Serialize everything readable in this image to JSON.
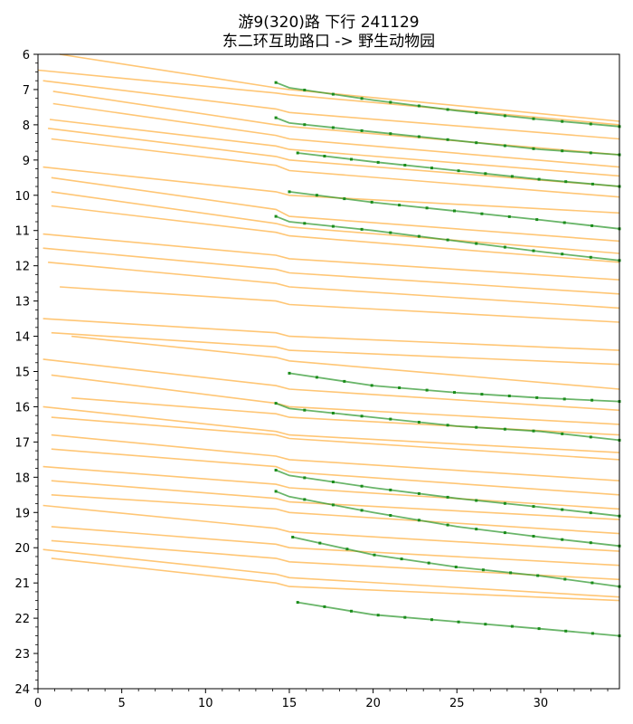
{
  "chart_data": {
    "type": "line",
    "title": "游9(320)路 下行 241129",
    "subtitle": "东二环互助路口 -> 野生动物园",
    "xlabel": "",
    "ylabel": "",
    "xlim": [
      0,
      34.7
    ],
    "ylim": [
      24,
      6
    ],
    "x_ticks": [
      0,
      5,
      10,
      15,
      20,
      25,
      30
    ],
    "y_ticks": [
      6,
      7,
      8,
      9,
      10,
      11,
      12,
      13,
      14,
      15,
      16,
      17,
      18,
      19,
      20,
      21,
      22,
      23,
      24
    ],
    "grid": false,
    "legend": "none",
    "colors": {
      "orange": "#ffb347",
      "green": "#2a962a",
      "marker": "#1a8c1a"
    },
    "series": [
      {
        "color": "orange",
        "x": [
          0,
          14.2,
          15,
          34.7
        ],
        "y": [
          6.45,
          7.1,
          7.15,
          8.0
        ]
      },
      {
        "color": "orange",
        "x": [
          1.3,
          14.2,
          15,
          34.7
        ],
        "y": [
          6.0,
          6.95,
          7.0,
          7.9
        ]
      },
      {
        "color": "orange",
        "x": [
          0.3,
          14.2,
          15,
          34.7
        ],
        "y": [
          6.75,
          7.55,
          7.65,
          8.4
        ]
      },
      {
        "color": "orange",
        "x": [
          0.9,
          14.2,
          15,
          34.7
        ],
        "y": [
          7.05,
          8.0,
          8.05,
          8.85
        ]
      },
      {
        "color": "orange",
        "x": [
          0.9,
          14.2,
          15,
          34.7
        ],
        "y": [
          7.4,
          8.3,
          8.4,
          9.2
        ]
      },
      {
        "color": "orange",
        "x": [
          0.7,
          14.2,
          15,
          34.7
        ],
        "y": [
          7.85,
          8.6,
          8.7,
          9.45
        ]
      },
      {
        "color": "orange",
        "x": [
          0.6,
          14.2,
          15,
          34.7
        ],
        "y": [
          8.1,
          8.9,
          9.0,
          9.75
        ]
      },
      {
        "color": "orange",
        "x": [
          0.8,
          14.2,
          15,
          34.7
        ],
        "y": [
          8.4,
          9.15,
          9.3,
          10.05
        ]
      },
      {
        "color": "orange",
        "x": [
          0.3,
          14.2,
          15,
          34.7
        ],
        "y": [
          9.2,
          9.9,
          10.0,
          10.5
        ]
      },
      {
        "color": "orange",
        "x": [
          0.8,
          14.2,
          15,
          34.7
        ],
        "y": [
          9.5,
          10.4,
          10.6,
          11.3
        ]
      },
      {
        "color": "orange",
        "x": [
          0.8,
          14.2,
          15,
          34.7
        ],
        "y": [
          9.9,
          10.8,
          10.9,
          11.65
        ]
      },
      {
        "color": "orange",
        "x": [
          0.8,
          14.2,
          15,
          34.7
        ],
        "y": [
          10.3,
          11.05,
          11.15,
          11.9
        ]
      },
      {
        "color": "orange",
        "x": [
          0.3,
          14.2,
          15,
          34.7
        ],
        "y": [
          11.1,
          11.7,
          11.8,
          12.4
        ]
      },
      {
        "color": "orange",
        "x": [
          0.3,
          14.2,
          15,
          34.7
        ],
        "y": [
          11.5,
          12.1,
          12.2,
          12.8
        ]
      },
      {
        "color": "orange",
        "x": [
          0.6,
          14.2,
          15,
          34.7
        ],
        "y": [
          11.9,
          12.5,
          12.6,
          13.2
        ]
      },
      {
        "color": "orange",
        "x": [
          1.3,
          14.2,
          15,
          34.7
        ],
        "y": [
          12.6,
          13.0,
          13.1,
          13.6
        ]
      },
      {
        "color": "orange",
        "x": [
          0.3,
          14.2,
          15,
          34.7
        ],
        "y": [
          13.5,
          13.9,
          14.0,
          14.4
        ]
      },
      {
        "color": "orange",
        "x": [
          0.8,
          14.2,
          15,
          34.7
        ],
        "y": [
          13.9,
          14.3,
          14.4,
          14.8
        ]
      },
      {
        "color": "orange",
        "x": [
          2.0,
          14.2,
          15,
          34.7
        ],
        "y": [
          14.0,
          14.6,
          14.7,
          15.5
        ]
      },
      {
        "color": "orange",
        "x": [
          0.3,
          14.2,
          15,
          34.7
        ],
        "y": [
          14.65,
          15.4,
          15.5,
          16.1
        ]
      },
      {
        "color": "orange",
        "x": [
          0.8,
          14.2,
          15,
          34.7
        ],
        "y": [
          15.1,
          15.9,
          16.0,
          16.5
        ]
      },
      {
        "color": "orange",
        "x": [
          2.0,
          14.2,
          15,
          34.7
        ],
        "y": [
          15.75,
          16.2,
          16.3,
          16.8
        ]
      },
      {
        "color": "orange",
        "x": [
          0.3,
          14.2,
          15,
          34.7
        ],
        "y": [
          16.0,
          16.7,
          16.8,
          17.3
        ]
      },
      {
        "color": "orange",
        "x": [
          0.8,
          14.2,
          15,
          34.7
        ],
        "y": [
          16.3,
          16.8,
          16.9,
          17.5
        ]
      },
      {
        "color": "orange",
        "x": [
          0.8,
          14.2,
          15,
          34.7
        ],
        "y": [
          16.8,
          17.4,
          17.5,
          18.1
        ]
      },
      {
        "color": "orange",
        "x": [
          0.8,
          14.2,
          15,
          34.7
        ],
        "y": [
          17.2,
          17.7,
          17.85,
          18.5
        ]
      },
      {
        "color": "orange",
        "x": [
          0.3,
          14.2,
          15,
          34.7
        ],
        "y": [
          17.7,
          18.2,
          18.3,
          18.9
        ]
      },
      {
        "color": "orange",
        "x": [
          0.8,
          14.2,
          15,
          34.7
        ],
        "y": [
          18.1,
          18.6,
          18.7,
          19.2
        ]
      },
      {
        "color": "orange",
        "x": [
          0.8,
          14.2,
          15,
          34.7
        ],
        "y": [
          18.5,
          18.9,
          19.0,
          19.6
        ]
      },
      {
        "color": "orange",
        "x": [
          0.3,
          14.2,
          15,
          34.7
        ],
        "y": [
          18.8,
          19.45,
          19.55,
          20.1
        ]
      },
      {
        "color": "orange",
        "x": [
          0.8,
          14.2,
          15,
          34.7
        ],
        "y": [
          19.4,
          19.9,
          20.0,
          20.5
        ]
      },
      {
        "color": "orange",
        "x": [
          0.8,
          14.2,
          15,
          34.7
        ],
        "y": [
          19.8,
          20.3,
          20.4,
          20.9
        ]
      },
      {
        "color": "orange",
        "x": [
          0.3,
          14.2,
          15,
          34.7
        ],
        "y": [
          20.05,
          20.75,
          20.85,
          21.4
        ]
      },
      {
        "color": "orange",
        "x": [
          0.8,
          14.2,
          15,
          34.7
        ],
        "y": [
          20.3,
          21.0,
          21.1,
          21.5
        ]
      },
      {
        "color": "green",
        "x": [
          14.2,
          15,
          20,
          25,
          30,
          34.7
        ],
        "y": [
          6.8,
          6.95,
          7.3,
          7.6,
          7.85,
          8.05
        ]
      },
      {
        "color": "green",
        "x": [
          14.2,
          15,
          20,
          25,
          30,
          34.7
        ],
        "y": [
          7.8,
          7.95,
          8.2,
          8.45,
          8.7,
          8.85
        ]
      },
      {
        "color": "green",
        "x": [
          15.5,
          20,
          25,
          30,
          34.7
        ],
        "y": [
          8.8,
          9.05,
          9.3,
          9.55,
          9.75
        ]
      },
      {
        "color": "green",
        "x": [
          15.0,
          20,
          25,
          30,
          34.7
        ],
        "y": [
          9.9,
          10.2,
          10.45,
          10.7,
          10.95
        ]
      },
      {
        "color": "green",
        "x": [
          14.2,
          15,
          20,
          25,
          30,
          34.7
        ],
        "y": [
          10.6,
          10.75,
          11.0,
          11.3,
          11.6,
          11.85
        ]
      },
      {
        "color": "green",
        "x": [
          15.0,
          20,
          25,
          30,
          34.7
        ],
        "y": [
          15.05,
          15.4,
          15.6,
          15.75,
          15.85
        ]
      },
      {
        "color": "green",
        "x": [
          14.2,
          15,
          20,
          25,
          30,
          34.7
        ],
        "y": [
          15.9,
          16.05,
          16.3,
          16.55,
          16.7,
          16.95
        ]
      },
      {
        "color": "green",
        "x": [
          14.2,
          15,
          20,
          25,
          30,
          34.7
        ],
        "y": [
          17.8,
          17.95,
          18.3,
          18.6,
          18.85,
          19.1
        ]
      },
      {
        "color": "green",
        "x": [
          14.2,
          15,
          20,
          25,
          30,
          34.7
        ],
        "y": [
          18.4,
          18.55,
          19.0,
          19.4,
          19.7,
          19.95
        ]
      },
      {
        "color": "green",
        "x": [
          15.2,
          20,
          25,
          30,
          34.7
        ],
        "y": [
          19.7,
          20.2,
          20.55,
          20.8,
          21.1
        ]
      },
      {
        "color": "green",
        "x": [
          15.5,
          20,
          25,
          30,
          34.7
        ],
        "y": [
          21.55,
          21.9,
          22.1,
          22.3,
          22.5
        ]
      }
    ]
  }
}
